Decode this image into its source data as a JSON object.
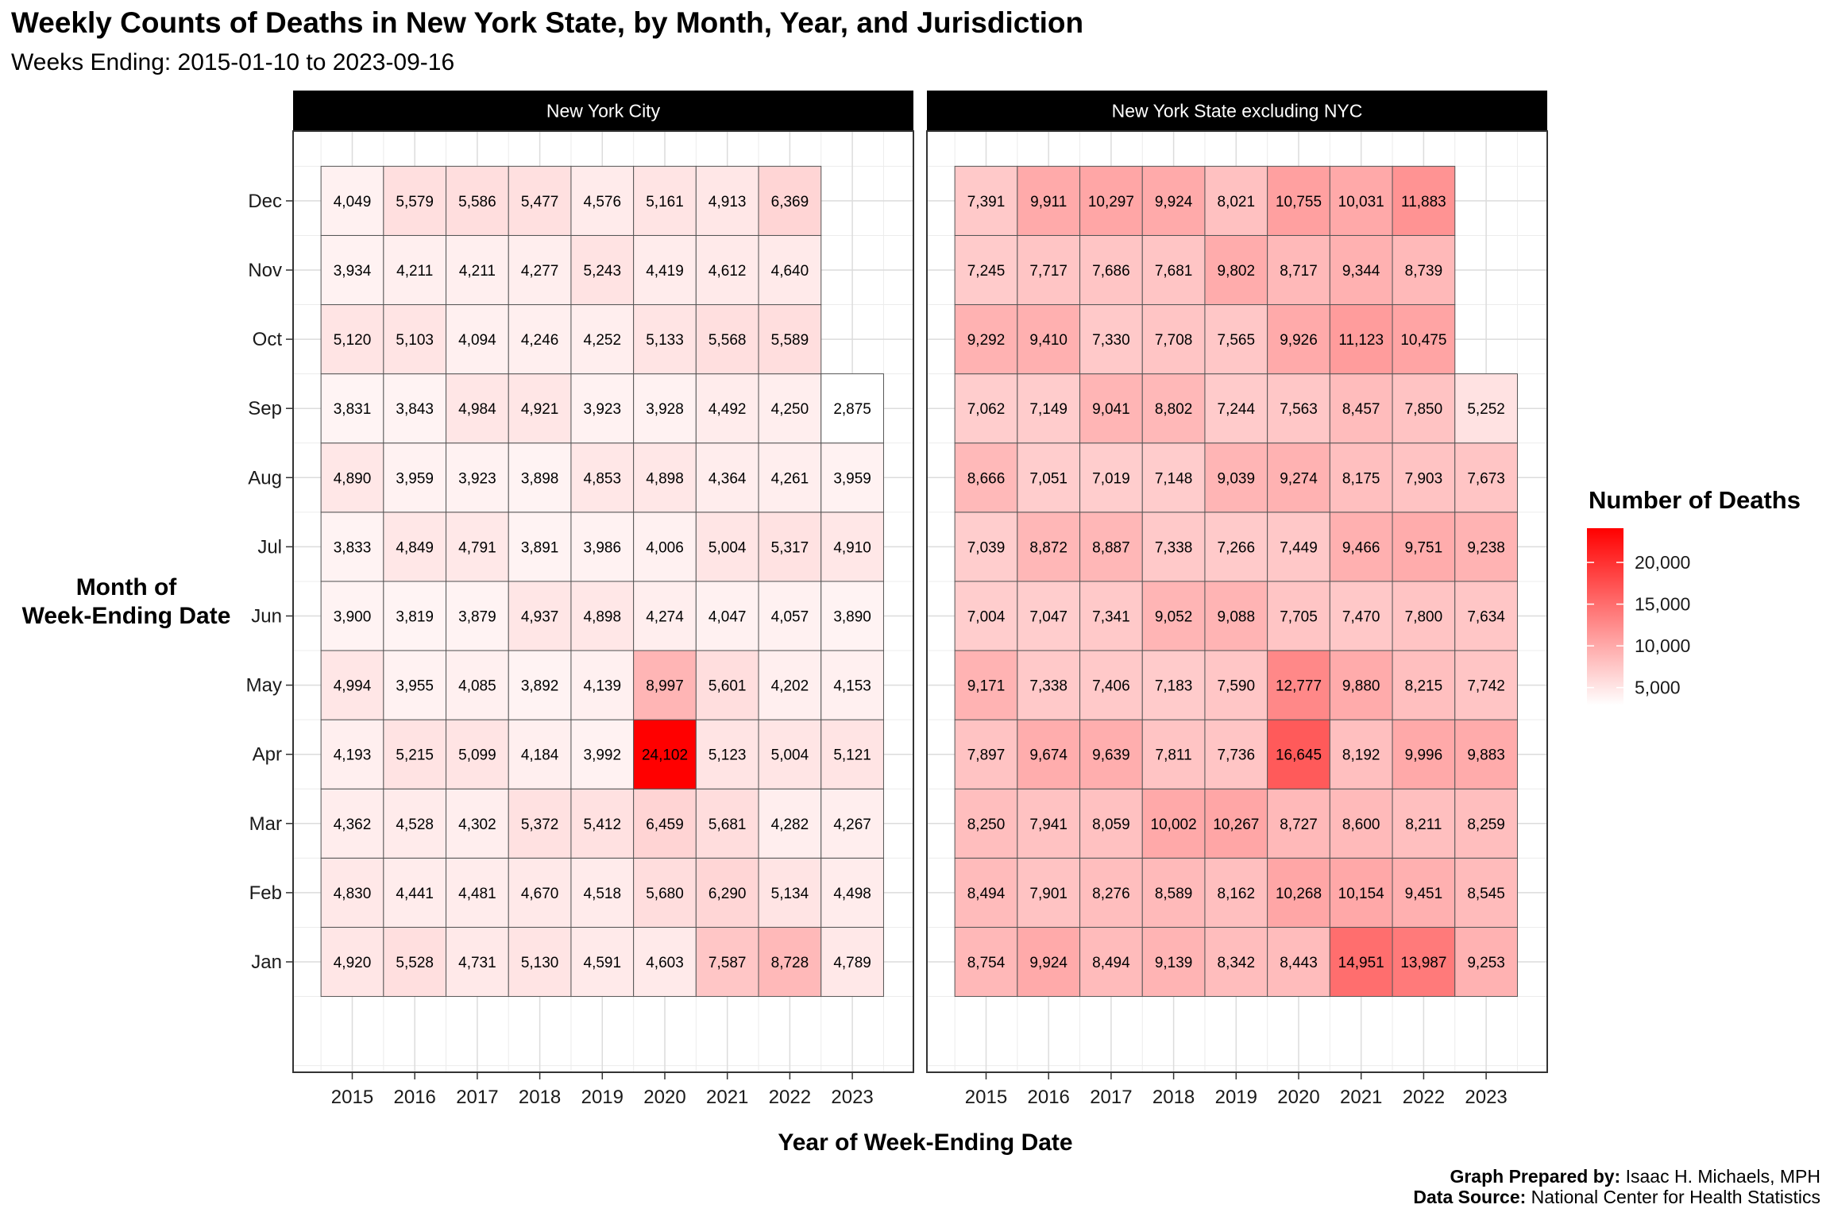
{
  "page": {
    "title": "Weekly Counts of Deaths in New York State, by Month, Year, and Jurisdiction",
    "subtitle": "Weeks Ending: 2015-01-10 to 2023-09-16",
    "caption": {
      "prepared_by_label": "Graph Prepared by:",
      "prepared_by": "Isaac H. Michaels, MPH",
      "source_label": "Data Source:",
      "source": "National Center for Health Statistics"
    }
  },
  "colors": {
    "low": "#ffffff",
    "high": "#ff0000",
    "strip": "#000000",
    "strip_text": "#ffffff",
    "grid": "#dcdcdc"
  },
  "chart_data": {
    "type": "heatmap",
    "title": "Weekly Counts of Deaths in New York State, by Month, Year, and Jurisdiction",
    "subtitle": "Weeks Ending: 2015-01-10 to 2023-09-16",
    "xlabel": "Year of Week-Ending Date",
    "ylabel": "Month of Week-Ending Date",
    "ylabel_lines": [
      "Month of",
      "Week-Ending Date"
    ],
    "years": [
      "2015",
      "2016",
      "2017",
      "2018",
      "2019",
      "2020",
      "2021",
      "2022",
      "2023"
    ],
    "months": [
      "Jan",
      "Feb",
      "Mar",
      "Apr",
      "May",
      "Jun",
      "Jul",
      "Aug",
      "Sep",
      "Oct",
      "Nov",
      "Dec"
    ],
    "legend": {
      "title": "Number of Deaths",
      "breaks": [
        5000,
        10000,
        15000,
        20000
      ],
      "break_labels": [
        "5,000",
        "10,000",
        "15,000",
        "20,000"
      ],
      "limits": [
        2875,
        24102
      ]
    },
    "panels": [
      {
        "name": "New York City",
        "values": {
          "Jan": [
            4920,
            5528,
            4731,
            5130,
            4591,
            4603,
            7587,
            8728,
            4789
          ],
          "Feb": [
            4830,
            4441,
            4481,
            4670,
            4518,
            5680,
            6290,
            5134,
            4498
          ],
          "Mar": [
            4362,
            4528,
            4302,
            5372,
            5412,
            6459,
            5681,
            4282,
            4267
          ],
          "Apr": [
            4193,
            5215,
            5099,
            4184,
            3992,
            24102,
            5123,
            5004,
            5121
          ],
          "May": [
            4994,
            3955,
            4085,
            3892,
            4139,
            8997,
            5601,
            4202,
            4153
          ],
          "Jun": [
            3900,
            3819,
            3879,
            4937,
            4898,
            4274,
            4047,
            4057,
            3890
          ],
          "Jul": [
            3833,
            4849,
            4791,
            3891,
            3986,
            4006,
            5004,
            5317,
            4910
          ],
          "Aug": [
            4890,
            3959,
            3923,
            3898,
            4853,
            4898,
            4364,
            4261,
            3959
          ],
          "Sep": [
            3831,
            3843,
            4984,
            4921,
            3923,
            3928,
            4492,
            4250,
            2875
          ],
          "Oct": [
            5120,
            5103,
            4094,
            4246,
            4252,
            5133,
            5568,
            5589,
            null
          ],
          "Nov": [
            3934,
            4211,
            4211,
            4277,
            5243,
            4419,
            4612,
            4640,
            null
          ],
          "Dec": [
            4049,
            5579,
            5586,
            5477,
            4576,
            5161,
            4913,
            6369,
            null
          ]
        }
      },
      {
        "name": "New York State excluding NYC",
        "values": {
          "Jan": [
            8754,
            9924,
            8494,
            9139,
            8342,
            8443,
            14951,
            13987,
            9253
          ],
          "Feb": [
            8494,
            7901,
            8276,
            8589,
            8162,
            10268,
            10154,
            9451,
            8545
          ],
          "Mar": [
            8250,
            7941,
            8059,
            10002,
            10267,
            8727,
            8600,
            8211,
            8259
          ],
          "Apr": [
            7897,
            9674,
            9639,
            7811,
            7736,
            16645,
            8192,
            9996,
            9883
          ],
          "May": [
            9171,
            7338,
            7406,
            7183,
            7590,
            12777,
            9880,
            8215,
            7742
          ],
          "Jun": [
            7004,
            7047,
            7341,
            9052,
            9088,
            7705,
            7470,
            7800,
            7634
          ],
          "Jul": [
            7039,
            8872,
            8887,
            7338,
            7266,
            7449,
            9466,
            9751,
            9238
          ],
          "Aug": [
            8666,
            7051,
            7019,
            7148,
            9039,
            9274,
            8175,
            7903,
            7673
          ],
          "Sep": [
            7062,
            7149,
            9041,
            8802,
            7244,
            7563,
            8457,
            7850,
            5252
          ],
          "Oct": [
            9292,
            9410,
            7330,
            7708,
            7565,
            9926,
            11123,
            10475,
            null
          ],
          "Nov": [
            7245,
            7717,
            7686,
            7681,
            9802,
            8717,
            9344,
            8739,
            null
          ],
          "Dec": [
            7391,
            9911,
            10297,
            9924,
            8021,
            10755,
            10031,
            11883,
            null
          ]
        }
      }
    ]
  }
}
